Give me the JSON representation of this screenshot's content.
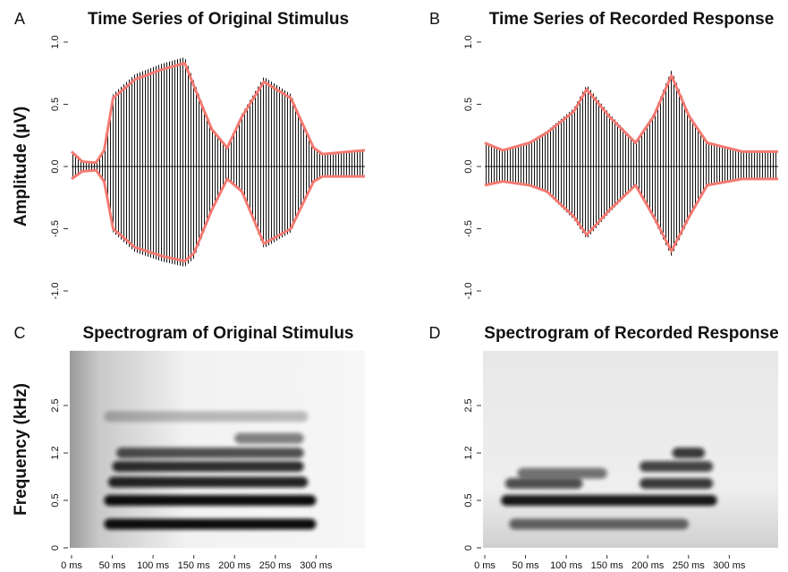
{
  "chart_data": [
    {
      "type": "line",
      "panel_label": "A",
      "title": "Time Series of Original Stimulus",
      "ylabel": "Amplitude (µV)",
      "xlim": [
        0,
        360
      ],
      "ylim": [
        -1,
        1
      ],
      "yticks": [
        {
          "value": -1,
          "label": "-1.0"
        },
        -0.5,
        {
          "value": 0,
          "label": "0.0"
        },
        0.5,
        {
          "value": 1,
          "label": "1.0"
        }
      ],
      "x": [
        0,
        13,
        30,
        40,
        51,
        78,
        111,
        139,
        150,
        172,
        191,
        209,
        236,
        269,
        297,
        308,
        360
      ],
      "series": [
        {
          "color": "#f47a72",
          "values": [
            0.12,
            0.04,
            0.03,
            0.13,
            0.55,
            0.7,
            0.78,
            0.83,
            0.65,
            0.3,
            0.15,
            0.4,
            0.68,
            0.55,
            0.15,
            0.1,
            0.13
          ]
        },
        {
          "color": "#f47a72",
          "values": [
            -0.1,
            -0.04,
            -0.03,
            -0.12,
            -0.5,
            -0.65,
            -0.72,
            -0.76,
            -0.7,
            -0.35,
            -0.1,
            -0.2,
            -0.62,
            -0.5,
            -0.12,
            -0.08,
            -0.08
          ]
        }
      ]
    },
    {
      "type": "line",
      "panel_label": "B",
      "title": "Time Series of Recorded Response",
      "xlim": [
        0,
        360
      ],
      "ylim": [
        -1,
        1
      ],
      "yticks": [
        {
          "value": -1,
          "label": "-1.0"
        },
        -0.5,
        {
          "value": 0,
          "label": "0.0"
        },
        0.5,
        {
          "value": 1,
          "label": "1.0"
        }
      ],
      "x": [
        0,
        22,
        55,
        76,
        109,
        125,
        153,
        185,
        207,
        229,
        251,
        273,
        316,
        360
      ],
      "series": [
        {
          "color": "#f47a72",
          "values": [
            0.19,
            0.13,
            0.19,
            0.27,
            0.44,
            0.62,
            0.4,
            0.19,
            0.4,
            0.73,
            0.4,
            0.19,
            0.12,
            0.12
          ]
        },
        {
          "color": "#f47a72",
          "values": [
            -0.15,
            -0.12,
            -0.15,
            -0.2,
            -0.4,
            -0.55,
            -0.35,
            -0.15,
            -0.4,
            -0.68,
            -0.4,
            -0.15,
            -0.1,
            -0.1
          ]
        }
      ]
    },
    {
      "type": "spectrogram",
      "panel_label": "C",
      "title": "Spectrogram of Original Stimulus",
      "ylabel": "Frequency (kHz)",
      "xlim": [
        0,
        360
      ],
      "ylim": [
        0,
        4
      ],
      "yscale": "piecewise",
      "yticks": [
        0,
        0.5,
        1.2,
        2.5
      ],
      "xticks": [
        {
          "value": 0,
          "label": "0 ms"
        },
        {
          "value": 50,
          "label": "50 ms"
        },
        {
          "value": 100,
          "label": "100 ms"
        },
        {
          "value": 150,
          "label": "150 ms"
        },
        {
          "value": 200,
          "label": "200 ms"
        },
        {
          "value": 250,
          "label": "250 ms"
        },
        {
          "value": 300,
          "label": "300 ms"
        }
      ],
      "bands": [
        {
          "freq": 0.25,
          "start": 40,
          "end": 300,
          "intensity": 1
        },
        {
          "freq": 0.5,
          "start": 40,
          "end": 300,
          "intensity": 1
        },
        {
          "freq": 0.77,
          "start": 45,
          "end": 290,
          "intensity": 0.9
        },
        {
          "freq": 1.0,
          "start": 50,
          "end": 285,
          "intensity": 0.85
        },
        {
          "freq": 1.2,
          "start": 55,
          "end": 285,
          "intensity": 0.7
        },
        {
          "freq": 1.6,
          "start": 200,
          "end": 285,
          "intensity": 0.5
        },
        {
          "freq": 2.2,
          "start": 40,
          "end": 290,
          "intensity": 0.25
        }
      ]
    },
    {
      "type": "spectrogram",
      "panel_label": "D",
      "title": "Spectrogram of Recorded Response",
      "xlim": [
        0,
        360
      ],
      "ylim": [
        0,
        4
      ],
      "yscale": "piecewise",
      "yticks": [
        0,
        0.5,
        1.2,
        2.5
      ],
      "xticks": [
        {
          "value": 0,
          "label": "0 ms"
        },
        {
          "value": 50,
          "label": "50 ms"
        },
        {
          "value": 100,
          "label": "100 ms"
        },
        {
          "value": 150,
          "label": "150 ms"
        },
        {
          "value": 200,
          "label": "200 ms"
        },
        {
          "value": 250,
          "label": "250 ms"
        },
        {
          "value": 300,
          "label": "300 ms"
        }
      ],
      "bands": [
        {
          "freq": 0.25,
          "start": 30,
          "end": 250,
          "intensity": 0.6
        },
        {
          "freq": 0.5,
          "start": 20,
          "end": 285,
          "intensity": 0.95
        },
        {
          "freq": 0.75,
          "start": 25,
          "end": 120,
          "intensity": 0.7
        },
        {
          "freq": 0.75,
          "start": 190,
          "end": 280,
          "intensity": 0.8
        },
        {
          "freq": 0.9,
          "start": 40,
          "end": 150,
          "intensity": 0.55
        },
        {
          "freq": 1.0,
          "start": 190,
          "end": 280,
          "intensity": 0.75
        },
        {
          "freq": 1.2,
          "start": 230,
          "end": 270,
          "intensity": 0.8
        }
      ]
    }
  ]
}
